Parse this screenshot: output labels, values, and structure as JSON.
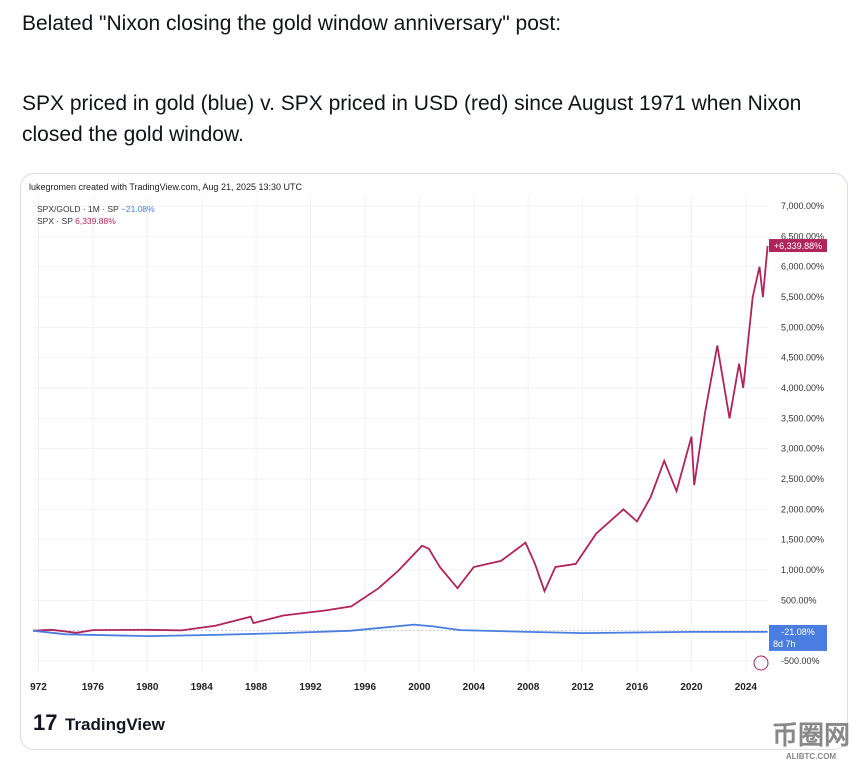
{
  "post": {
    "line1": "Belated \"Nixon closing the gold window anniversary\" post:",
    "line2": "SPX priced in gold (blue) v. SPX priced in USD (red) since August 1971 when Nixon closed the gold window."
  },
  "chart_data": {
    "type": "line",
    "attribution": "lukegromen created with TradingView.com, Aug 21, 2025 13:30 UTC",
    "legend": [
      {
        "label": "SPX/GOLD · 1M · SP",
        "value": "−21.08%",
        "color": "#4a7de0"
      },
      {
        "label": "SPX · SP",
        "value": "6,339.88%",
        "color": "#b0245c"
      }
    ],
    "ylim": [
      -500,
      7000
    ],
    "yticks": [
      "7,000.00%",
      "6,500.00%",
      "6,000.00%",
      "5,500.00%",
      "5,000.00%",
      "4,500.00%",
      "4,000.00%",
      "3,500.00%",
      "3,000.00%",
      "2,500.00%",
      "2,000.00%",
      "1,500.00%",
      "1,000.00%",
      "500.00%",
      "-500.00%"
    ],
    "ytick_values": [
      7000,
      6500,
      6000,
      5500,
      5000,
      4500,
      4000,
      3500,
      3000,
      2500,
      2000,
      1500,
      1000,
      500,
      -500
    ],
    "xticks": [
      "972",
      "1976",
      "1980",
      "1984",
      "1988",
      "1992",
      "1996",
      "2000",
      "2004",
      "2008",
      "2012",
      "2016",
      "2020",
      "2024"
    ],
    "xtick_values": [
      1972,
      1976,
      1980,
      1984,
      1988,
      1992,
      1996,
      2000,
      2004,
      2008,
      2012,
      2016,
      2020,
      2024
    ],
    "xlim": [
      1971.6,
      2025.7
    ],
    "series": [
      {
        "name": "SPX",
        "color": "#b0245c",
        "label": "+6,339.88%",
        "points": [
          [
            1971.6,
            0
          ],
          [
            1973,
            15
          ],
          [
            1974.8,
            -35
          ],
          [
            1976,
            10
          ],
          [
            1980,
            15
          ],
          [
            1982.5,
            5
          ],
          [
            1985,
            80
          ],
          [
            1987.6,
            230
          ],
          [
            1987.8,
            125
          ],
          [
            1990,
            250
          ],
          [
            1993,
            330
          ],
          [
            1995,
            400
          ],
          [
            1997,
            700
          ],
          [
            1998.5,
            1000
          ],
          [
            2000.2,
            1400
          ],
          [
            2000.7,
            1350
          ],
          [
            2001.5,
            1050
          ],
          [
            2002.8,
            700
          ],
          [
            2004,
            1050
          ],
          [
            2006,
            1150
          ],
          [
            2007.8,
            1450
          ],
          [
            2008.5,
            1100
          ],
          [
            2009.2,
            650
          ],
          [
            2010,
            1050
          ],
          [
            2011.5,
            1100
          ],
          [
            2013,
            1600
          ],
          [
            2015,
            2000
          ],
          [
            2016,
            1800
          ],
          [
            2017,
            2200
          ],
          [
            2018,
            2800
          ],
          [
            2018.9,
            2300
          ],
          [
            2020,
            3200
          ],
          [
            2020.2,
            2400
          ],
          [
            2021,
            3600
          ],
          [
            2021.9,
            4700
          ],
          [
            2022.8,
            3500
          ],
          [
            2023.5,
            4400
          ],
          [
            2023.8,
            4000
          ],
          [
            2024.5,
            5500
          ],
          [
            2025,
            6000
          ],
          [
            2025.25,
            5500
          ],
          [
            2025.6,
            6340
          ]
        ]
      },
      {
        "name": "SPX/GOLD",
        "color": "#4a7de0",
        "label": "-21.08%",
        "sublabel": "8d 7h",
        "points": [
          [
            1971.6,
            0
          ],
          [
            1974,
            -60
          ],
          [
            1980,
            -90
          ],
          [
            1985,
            -70
          ],
          [
            1990,
            -40
          ],
          [
            1995,
            0
          ],
          [
            1999.6,
            100
          ],
          [
            2001,
            70
          ],
          [
            2003,
            10
          ],
          [
            2008,
            -20
          ],
          [
            2012,
            -40
          ],
          [
            2016,
            -30
          ],
          [
            2020,
            -20
          ],
          [
            2025.6,
            -21
          ]
        ]
      }
    ]
  },
  "brand": "TradingView",
  "watermark": {
    "text": "币圈网",
    "sub": "ALIBTC.COM"
  }
}
